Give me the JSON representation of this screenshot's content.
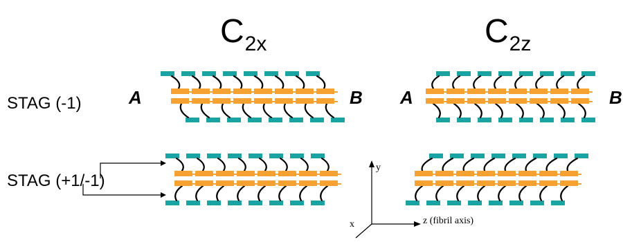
{
  "columns": [
    {
      "main": "C",
      "sub": "2x"
    },
    {
      "main": "C",
      "sub": "2z"
    }
  ],
  "rows": [
    {
      "label": "STAG (-1)"
    },
    {
      "label": "STAG (+1/-1)"
    }
  ],
  "ends": {
    "left": "A",
    "right": "B"
  },
  "axes": {
    "x": "x",
    "y": "y",
    "z": "z (fibril axis)"
  },
  "colors": {
    "teal": "#1aa3a3",
    "orange": "#f5a233",
    "line": "#000000"
  }
}
